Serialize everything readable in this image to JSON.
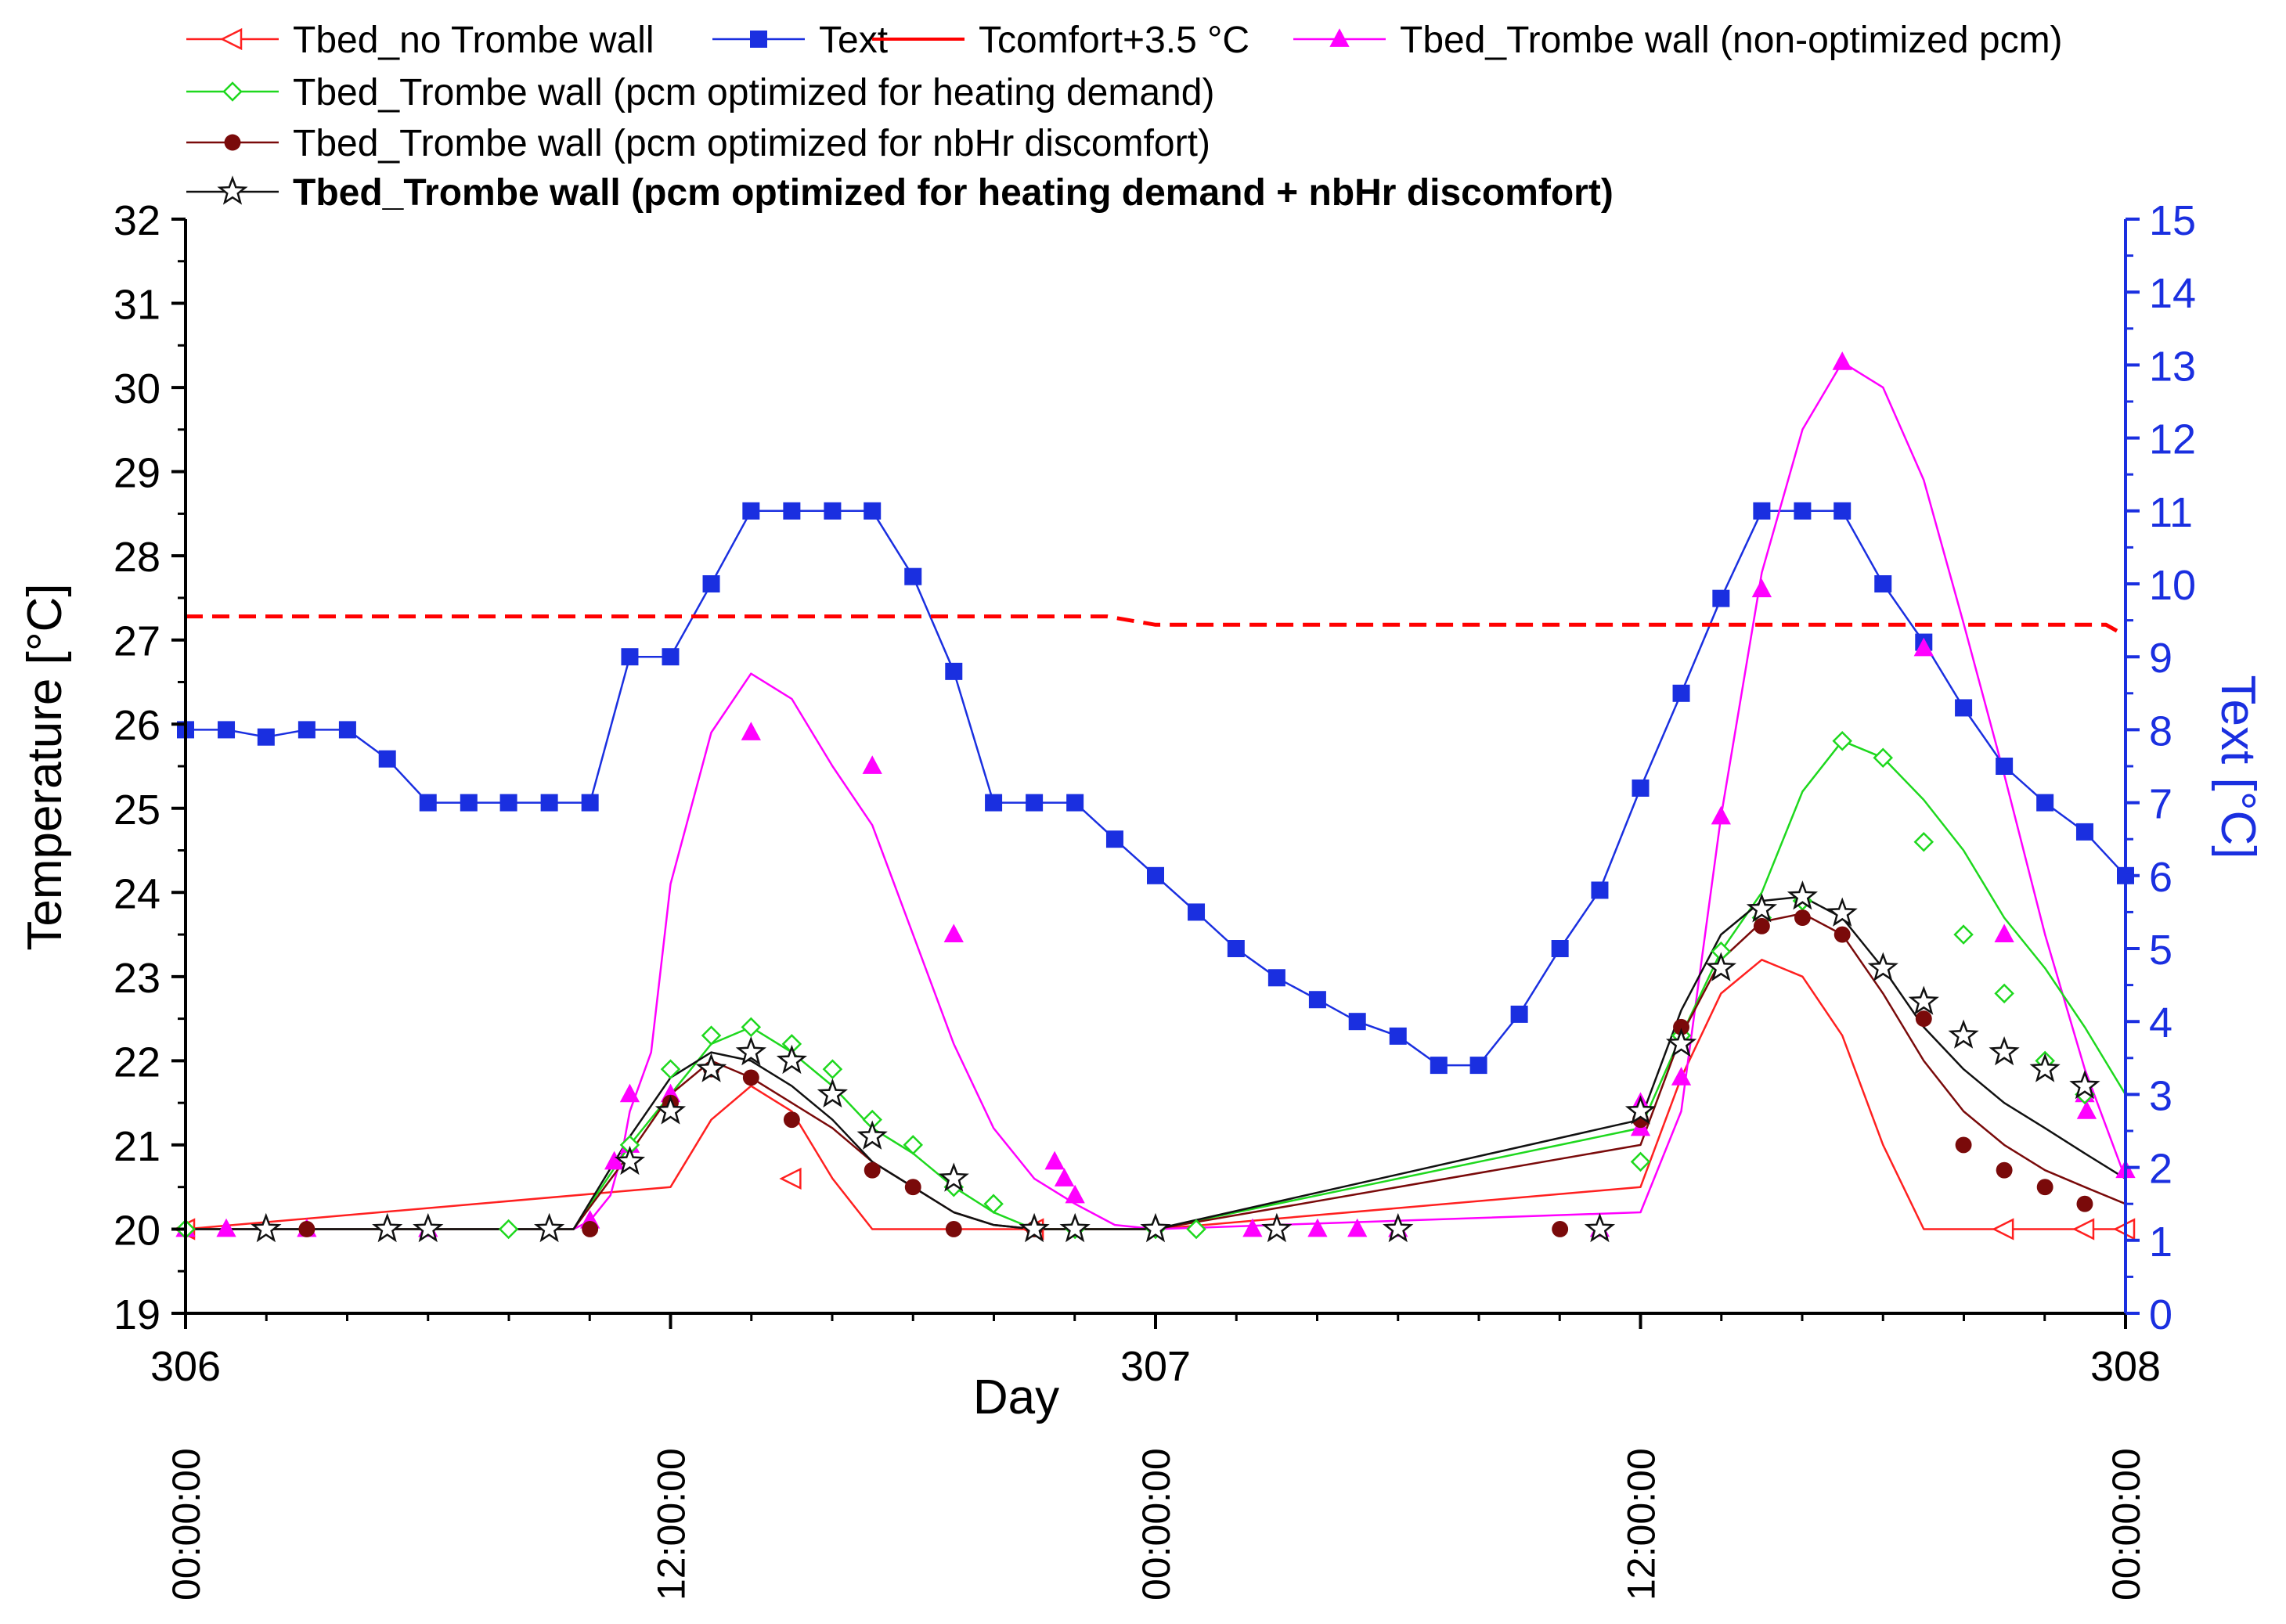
{
  "chart_data": {
    "type": "line",
    "xlabel": "Day",
    "ylabel": "Temperature [°C]",
    "y2label": "Text [°C]",
    "xlim": [
      306,
      308
    ],
    "ylim": [
      19,
      32
    ],
    "y2lim": [
      0,
      15
    ],
    "grid": false,
    "legend_position": "top-left",
    "x_ticks": [
      {
        "value": 306,
        "label": "306",
        "time": "00:00:00"
      },
      {
        "value": 306.5,
        "label": "",
        "time": "12:00:00"
      },
      {
        "value": 307,
        "label": "307",
        "time": "00:00:00"
      },
      {
        "value": 307.5,
        "label": "",
        "time": "12:00:00"
      },
      {
        "value": 308,
        "label": "308",
        "time": "00:00:00"
      }
    ],
    "y_ticks": [
      "19",
      "20",
      "21",
      "22",
      "23",
      "24",
      "25",
      "26",
      "27",
      "28",
      "29",
      "30",
      "31",
      "32"
    ],
    "y2_ticks": [
      "0",
      "1",
      "2",
      "3",
      "4",
      "5",
      "6",
      "7",
      "8",
      "9",
      "10",
      "11",
      "12",
      "13",
      "14",
      "15"
    ],
    "series": [
      {
        "name": "Tbed_no Trombe wall",
        "color": "#ff2020",
        "marker": "triangle-left-open",
        "axis": "left",
        "x": [
          306,
          306.5,
          306.542,
          306.583,
          306.625,
          306.667,
          306.708,
          306.75,
          306.792,
          306.833,
          306.875,
          306.917,
          306.958,
          307,
          307.5,
          307.542,
          307.583,
          307.625,
          307.667,
          307.708,
          307.75,
          307.792,
          307.833,
          307.875,
          307.917,
          307.958,
          308
        ],
        "y": [
          20,
          20.5,
          21.3,
          21.7,
          21.4,
          20.6,
          20.0,
          20.0,
          20.0,
          20.0,
          20.0,
          20.0,
          20.0,
          20.0,
          20.5,
          21.8,
          22.8,
          23.2,
          23.0,
          22.3,
          21.0,
          20.0,
          20.0,
          20.0,
          20.0,
          20.0,
          20.0
        ],
        "marker_x": [
          306,
          306.625,
          306.875,
          307.875,
          307.958,
          308
        ],
        "marker_y": [
          20,
          20.6,
          20.0,
          20.0,
          20.0,
          20.0
        ]
      },
      {
        "name": "Text",
        "color": "#1a2fe0",
        "marker": "square-filled",
        "axis": "right",
        "x": [
          306,
          306.042,
          306.083,
          306.125,
          306.167,
          306.208,
          306.25,
          306.292,
          306.333,
          306.375,
          306.417,
          306.458,
          306.5,
          306.542,
          306.583,
          306.625,
          306.667,
          306.708,
          306.75,
          306.792,
          306.833,
          306.875,
          306.917,
          306.958,
          307,
          307.042,
          307.083,
          307.125,
          307.167,
          307.208,
          307.25,
          307.292,
          307.333,
          307.375,
          307.417,
          307.458,
          307.5,
          307.542,
          307.583,
          307.625,
          307.667,
          307.708,
          307.75,
          307.792,
          307.833,
          307.875,
          307.917,
          307.958,
          308
        ],
        "y": [
          8,
          8,
          7.9,
          8,
          8,
          7.6,
          7,
          7,
          7,
          7,
          7,
          9,
          9,
          10,
          11,
          11,
          11,
          11,
          10.1,
          8.8,
          7,
          7,
          7,
          6.5,
          6,
          5.5,
          5,
          4.6,
          4.3,
          4,
          3.8,
          3.4,
          3.4,
          4.1,
          5,
          5.8,
          7.2,
          8.5,
          9.8,
          11,
          11,
          11,
          10,
          9.2,
          8.3,
          7.5,
          7,
          6.6,
          6
        ]
      },
      {
        "name": "Tcomfort+3.5 °C",
        "color": "#ff0000",
        "style": "dashed",
        "axis": "left",
        "x": [
          306,
          306.95,
          307,
          307.5,
          307.98,
          308
        ],
        "y": [
          27.28,
          27.28,
          27.18,
          27.18,
          27.18,
          27.05
        ]
      },
      {
        "name": "Tbed_Trombe wall (non-optimized pcm)",
        "color": "#ff00ff",
        "marker": "triangle-up-filled",
        "axis": "left",
        "x": [
          306,
          306.4,
          306.417,
          306.438,
          306.45,
          306.458,
          306.48,
          306.5,
          306.542,
          306.583,
          306.625,
          306.667,
          306.708,
          306.75,
          306.792,
          306.833,
          306.875,
          306.917,
          306.958,
          307,
          307.5,
          307.542,
          307.583,
          307.625,
          307.667,
          307.708,
          307.75,
          307.792,
          307.833,
          307.875,
          307.917,
          307.958,
          308
        ],
        "y": [
          20,
          20,
          20.1,
          20.4,
          20.9,
          21.4,
          22.1,
          24.1,
          25.9,
          26.6,
          26.3,
          25.5,
          24.8,
          23.5,
          22.2,
          21.2,
          20.6,
          20.3,
          20.05,
          20,
          20.2,
          21.4,
          24.9,
          27.8,
          29.5,
          30.3,
          30.0,
          28.9,
          27.2,
          25.4,
          23.5,
          21.9,
          20.6
        ],
        "marker_x": [
          306,
          306.042,
          306.125,
          306.25,
          306.417,
          306.442,
          306.458,
          306.458,
          306.5,
          306.583,
          306.708,
          306.792,
          306.896,
          306.906,
          306.917,
          307.1,
          307.167,
          307.208,
          307.25,
          307.458,
          307.5,
          307.5,
          307.542,
          307.583,
          307.625,
          307.708,
          307.792,
          307.875,
          307.958,
          307.96,
          308
        ],
        "marker_y": [
          20,
          20,
          20,
          20,
          20.1,
          20.8,
          21.0,
          21.6,
          21.6,
          25.9,
          25.5,
          23.5,
          20.8,
          20.6,
          20.4,
          20.0,
          20.0,
          20.0,
          20.0,
          20.0,
          21.2,
          21.5,
          21.8,
          24.9,
          27.6,
          30.3,
          26.9,
          23.5,
          21.6,
          21.4,
          20.7
        ]
      },
      {
        "name": "Tbed_Trombe wall (pcm optimized for heating demand)",
        "color": "#1ed81e",
        "marker": "diamond-open",
        "axis": "left",
        "x": [
          306,
          306.4,
          306.458,
          306.5,
          306.542,
          306.583,
          306.625,
          306.667,
          306.708,
          306.75,
          306.792,
          306.833,
          306.875,
          306.917,
          306.958,
          307,
          307.5,
          307.542,
          307.583,
          307.625,
          307.667,
          307.708,
          307.75,
          307.792,
          307.833,
          307.875,
          307.917,
          307.958,
          308
        ],
        "y": [
          20,
          20,
          21.0,
          21.6,
          22.2,
          22.4,
          22.1,
          21.7,
          21.2,
          20.9,
          20.5,
          20.2,
          20.0,
          20.0,
          20.0,
          20.0,
          21.2,
          22.3,
          23.3,
          24.0,
          25.2,
          25.8,
          25.6,
          25.1,
          24.5,
          23.7,
          23.1,
          22.4,
          21.6
        ],
        "marker_x": [
          306,
          306.333,
          306.458,
          306.5,
          306.542,
          306.583,
          306.625,
          306.667,
          306.708,
          306.75,
          306.792,
          306.833,
          306.917,
          307.0,
          307.042,
          307.5,
          307.542,
          307.583,
          307.625,
          307.667,
          307.708,
          307.75,
          307.792,
          307.833,
          307.875,
          307.917,
          307.958
        ],
        "marker_y": [
          20,
          20,
          21.0,
          21.9,
          22.3,
          22.4,
          22.2,
          21.9,
          21.3,
          21.0,
          20.5,
          20.3,
          20.0,
          20.0,
          20.0,
          20.8,
          22.3,
          23.3,
          23.7,
          23.9,
          25.8,
          25.6,
          24.6,
          23.5,
          22.8,
          22.0,
          21.6
        ]
      },
      {
        "name": "Tbed_Trombe wall (pcm optimized for nbHr discomfort)",
        "color": "#7a0a0a",
        "marker": "circle-filled",
        "axis": "left",
        "x": [
          306,
          306.4,
          306.458,
          306.5,
          306.542,
          306.583,
          306.625,
          306.667,
          306.708,
          306.75,
          306.792,
          306.833,
          306.875,
          306.917,
          306.958,
          307,
          307.5,
          307.542,
          307.583,
          307.625,
          307.667,
          307.708,
          307.75,
          307.792,
          307.833,
          307.875,
          307.917,
          307.958,
          308
        ],
        "y": [
          20,
          20,
          20.9,
          21.6,
          22.0,
          21.8,
          21.5,
          21.2,
          20.8,
          20.5,
          20.2,
          20.05,
          20.0,
          20.0,
          20.0,
          20.0,
          21.0,
          22.3,
          23.2,
          23.65,
          23.75,
          23.5,
          22.8,
          22.0,
          21.4,
          21.0,
          20.7,
          20.5,
          20.3
        ],
        "marker_x": [
          306.125,
          306.417,
          306.5,
          306.542,
          306.583,
          306.625,
          306.708,
          306.75,
          306.792,
          306.875,
          307.417,
          307.5,
          307.542,
          307.625,
          307.667,
          307.708,
          307.792,
          307.833,
          307.875,
          307.917,
          307.958
        ],
        "marker_y": [
          20,
          20,
          21.5,
          21.9,
          21.8,
          21.3,
          20.7,
          20.5,
          20.0,
          20.0,
          20.0,
          21.3,
          22.4,
          23.6,
          23.7,
          23.5,
          22.5,
          21.0,
          20.7,
          20.5,
          20.3
        ]
      },
      {
        "name": "Tbed_Trombe wall (pcm optimized for heating demand + nbHr discomfort)",
        "color": "#111111",
        "marker": "star-open",
        "bold": true,
        "axis": "left",
        "x": [
          306,
          306.4,
          306.458,
          306.5,
          306.542,
          306.583,
          306.625,
          306.667,
          306.708,
          306.75,
          306.792,
          306.833,
          306.875,
          306.917,
          306.958,
          307,
          307.5,
          307.542,
          307.583,
          307.625,
          307.667,
          307.708,
          307.75,
          307.792,
          307.833,
          307.875,
          307.917,
          307.958,
          308
        ],
        "y": [
          20,
          20,
          21.1,
          21.8,
          22.1,
          22.0,
          21.7,
          21.3,
          20.8,
          20.5,
          20.2,
          20.05,
          20.0,
          20.0,
          20.0,
          20.0,
          21.3,
          22.6,
          23.5,
          23.9,
          23.95,
          23.7,
          23.1,
          22.4,
          21.9,
          21.5,
          21.2,
          20.9,
          20.6
        ],
        "marker_x": [
          306.083,
          306.208,
          306.25,
          306.375,
          306.458,
          306.5,
          306.542,
          306.583,
          306.625,
          306.667,
          306.708,
          306.792,
          306.875,
          306.917,
          307.0,
          307.125,
          307.25,
          307.458,
          307.5,
          307.542,
          307.583,
          307.625,
          307.667,
          307.708,
          307.75,
          307.792,
          307.833,
          307.875,
          307.917,
          307.958
        ],
        "marker_y": [
          20,
          20,
          20,
          20,
          20.8,
          21.4,
          21.9,
          22.1,
          22.0,
          21.6,
          21.1,
          20.6,
          20.0,
          20.0,
          20.0,
          20.0,
          20.0,
          20.0,
          21.4,
          22.2,
          23.1,
          23.8,
          23.95,
          23.75,
          23.1,
          22.7,
          22.3,
          22.1,
          21.9,
          21.7
        ]
      }
    ]
  }
}
